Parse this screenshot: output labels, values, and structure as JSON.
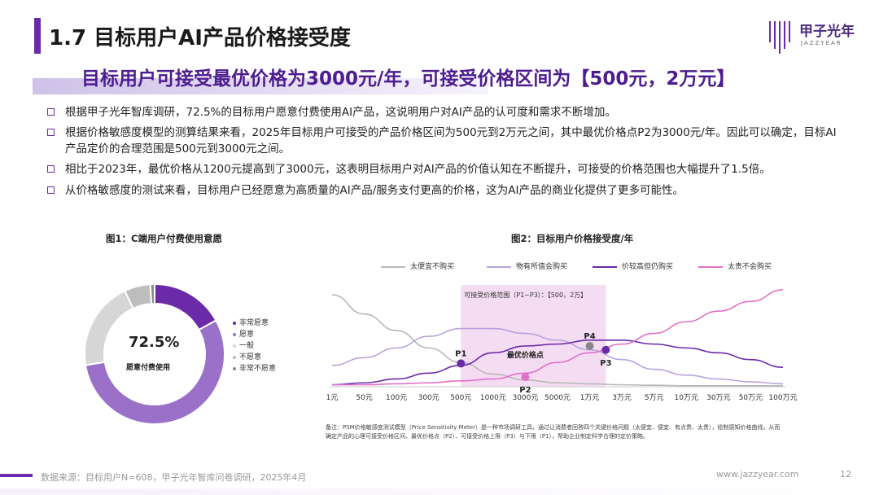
{
  "header": {
    "title": "1.7 目标用户AI产品价格接受度",
    "logo_main": "甲子光年",
    "logo_sub": "JAZZYEAR"
  },
  "subtitle": "目标用户可接受最优价格为3000元/年，可接受价格区间为【500元，2万元】",
  "bullets": [
    "根据甲子光年智库调研，72.5%的目标用户愿意付费使用AI产品，这说明用户对AI产品的认可度和需求不断增加。",
    "根据价格敏感度模型的测算结果来看，2025年目标用户可接受的产品价格区间为500元到2万元之间，其中最优价格点P2为3000元/年。因此可以确定，目标AI产品定价的合理范围是500元到3000元之间。",
    "相比于2023年，最优价格从1200元提高到了3000元，这表明目标用户对AI产品的价值认知在不断提升，可接受的价格范围也大幅提升了1.5倍。",
    "从价格敏感度的测试来看，目标用户已经愿意为高质量的AI产品/服务支付更高的价格，这为AI产品的商业化提供了更多可能性。"
  ],
  "chart_data": [
    {
      "type": "pie",
      "title": "图1：C端用户付费使用意愿",
      "center_value": "72.5%",
      "center_label": "愿意付费使用",
      "categories": [
        "非常愿意",
        "愿意",
        "一般",
        "不愿意",
        "非常不愿意"
      ],
      "values": [
        17.0,
        55.5,
        20.5,
        6.0,
        1.0
      ],
      "colors": [
        "#6b2aa8",
        "#9a70c8",
        "#d6d6d6",
        "#bdbdbd",
        "#8a8a8a"
      ],
      "legend": "right"
    },
    {
      "type": "line",
      "title": "图2：目标用户价格接受度/年",
      "categories": [
        "1元",
        "50元",
        "100元",
        "300元",
        "500元",
        "1000元",
        "3000元",
        "5000元",
        "1万元",
        "3万元",
        "5万元",
        "10万元",
        "30万元",
        "50万元",
        "100万元"
      ],
      "series": [
        {
          "name": "太便宜不购买",
          "color": "#b8b8b8",
          "values": [
            95,
            75,
            58,
            40,
            25,
            13,
            7,
            4,
            3,
            2,
            1.5,
            1,
            1,
            1,
            1
          ]
        },
        {
          "name": "物有所值会购买",
          "color": "#b9a3dd",
          "values": [
            22,
            30,
            40,
            52,
            60,
            60,
            55,
            48,
            38,
            28,
            18,
            12,
            8,
            5,
            3
          ]
        },
        {
          "name": "价较高但仍购买",
          "color": "#6b2aa8",
          "values": [
            2,
            4,
            8,
            14,
            22,
            35,
            42,
            44,
            48,
            48,
            44,
            40,
            35,
            28,
            20
          ]
        },
        {
          "name": "太贵不会购买",
          "color": "#e070c8",
          "values": [
            2,
            2,
            3,
            4,
            6,
            8,
            14,
            25,
            35,
            44,
            55,
            67,
            78,
            88,
            100
          ]
        }
      ],
      "ylim": [
        0,
        105
      ],
      "range_label": "可接受价格范围（P1~P3）：【500，2万】",
      "range": [
        "500元",
        "2万元"
      ],
      "points": [
        {
          "label": "P1",
          "x": "500元",
          "y": 24,
          "color": "#6b2aa8"
        },
        {
          "label": "P2",
          "sublabel": "最优价格点",
          "x": "3000元",
          "y": 10,
          "color": "#e070c8"
        },
        {
          "label": "P3",
          "x": "2万元",
          "y": 38,
          "color": "#6b2aa8"
        },
        {
          "label": "P4",
          "x": "1万元",
          "y": 42,
          "color": "#888888"
        }
      ],
      "legend": "top",
      "note": "备注：PSM价格敏感度测试模型（Price Sensitivity Meter）是一种市场调研工具，通过让消费者回答四个关键价格问题（太便宜、便宜、有点贵、太贵），绘制感知价格曲线，从而确定产品的心理可接受价格区间、最优价格点（P2）、可接受价格上限（P3）与下限（P1），帮助企业制定科学合理的定价策略。"
    }
  ],
  "footer": {
    "source": "数据来源：目标用户N=608，甲子光年智库问卷调研，2025年4月",
    "website": "www.jazzyear.com",
    "page": "12"
  }
}
